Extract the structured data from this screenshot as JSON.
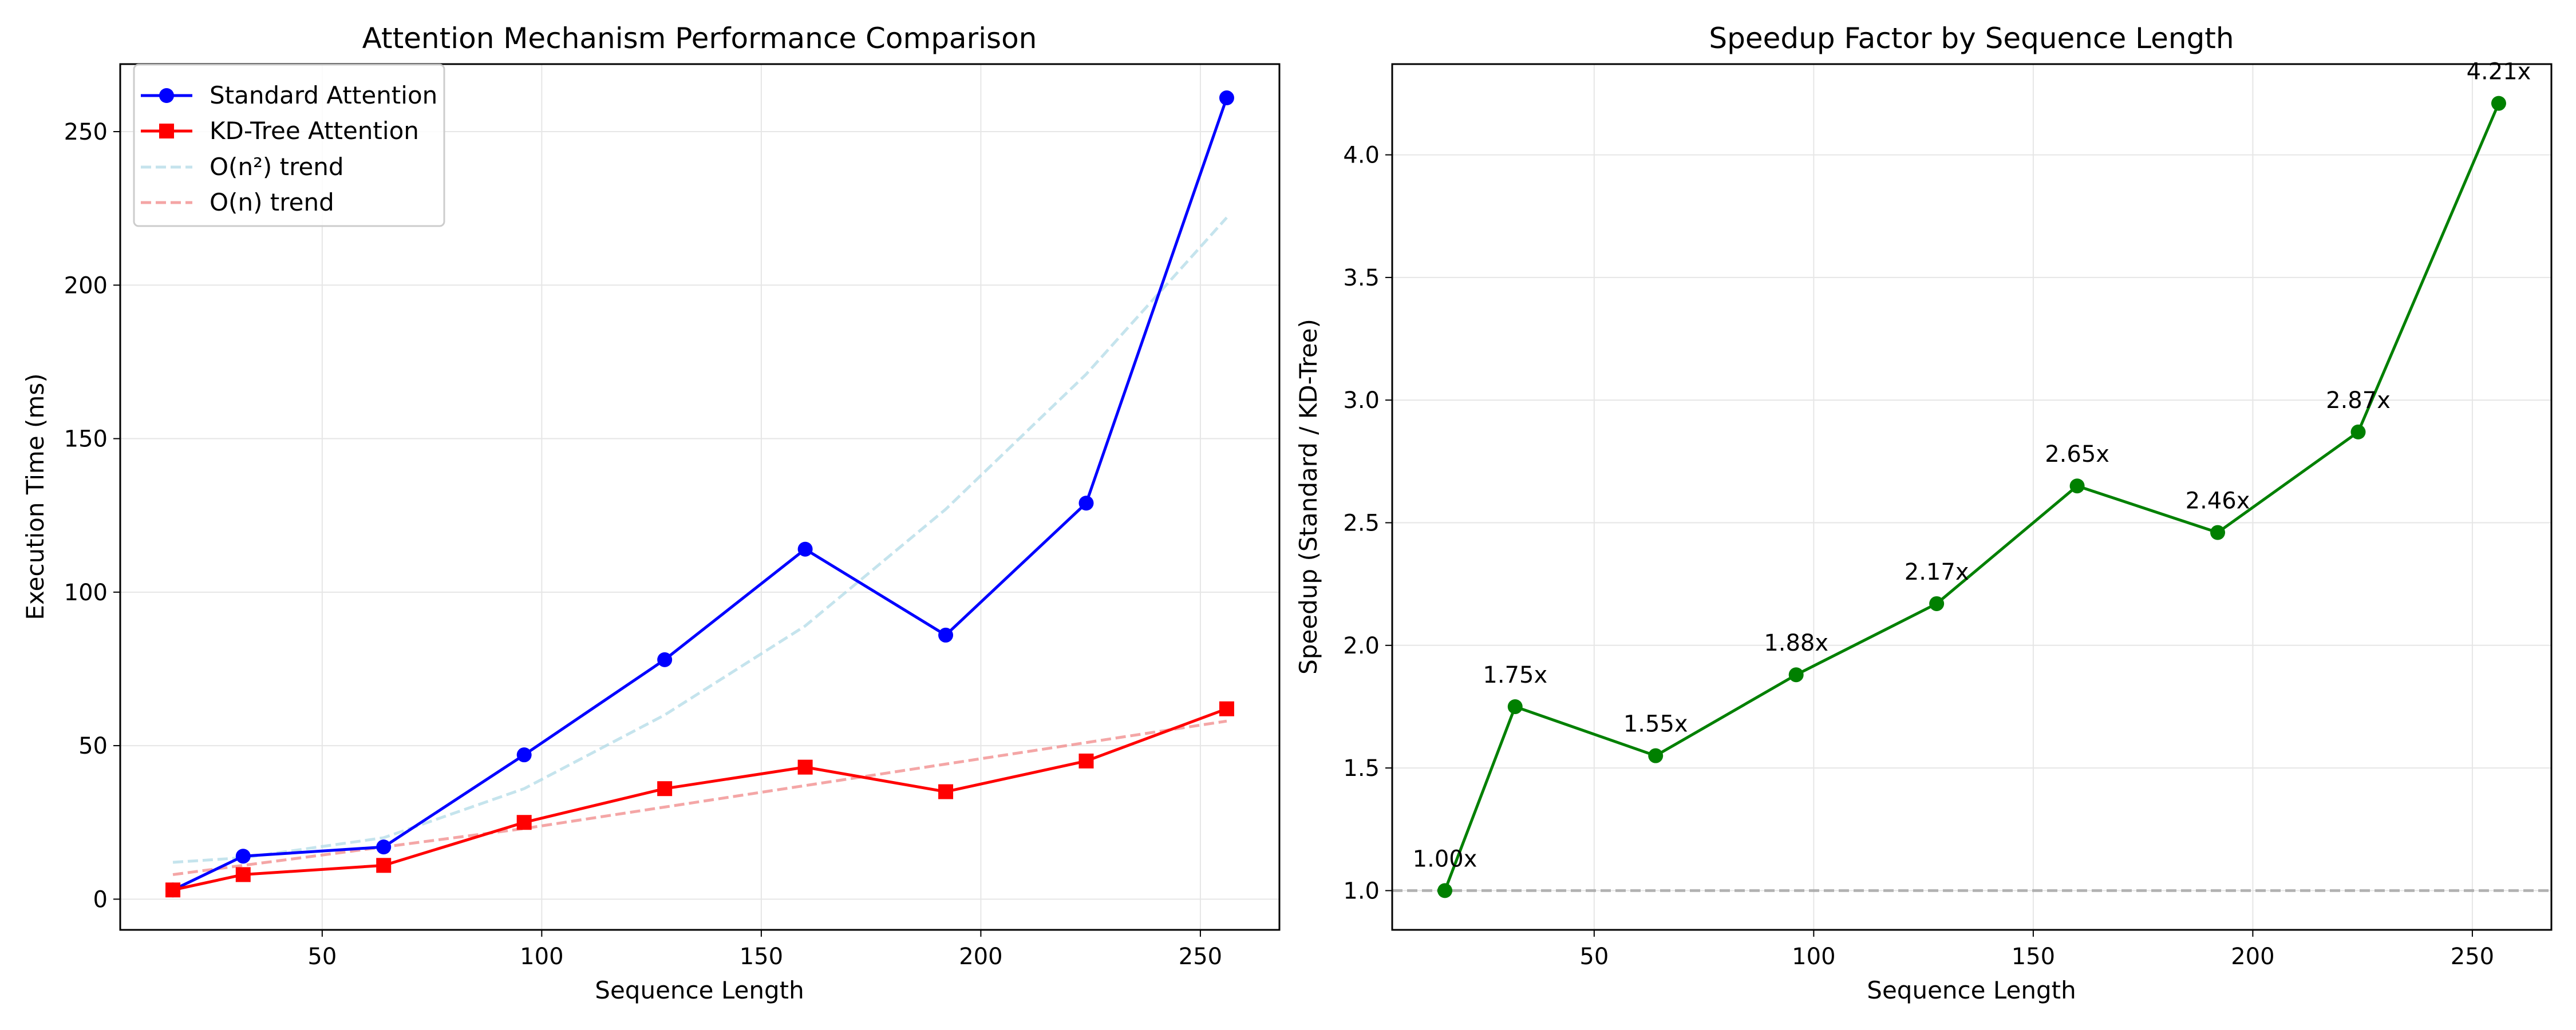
{
  "chart_data": [
    {
      "type": "line",
      "title": "Attention Mechanism Performance Comparison",
      "xlabel": "Sequence Length",
      "ylabel": "Execution Time (ms)",
      "xlim": [
        4,
        268
      ],
      "ylim": [
        -10,
        272
      ],
      "xticks": [
        50,
        100,
        150,
        200,
        250
      ],
      "yticks": [
        0,
        50,
        100,
        150,
        200,
        250
      ],
      "grid": true,
      "legend_position": "top-left",
      "x": [
        16,
        32,
        64,
        96,
        128,
        160,
        192,
        224,
        256
      ],
      "series": [
        {
          "name": "Standard Attention",
          "color": "#0000ff",
          "marker": "circle",
          "style": "solid",
          "values": [
            3,
            14,
            17,
            47,
            78,
            114,
            86,
            129,
            261
          ]
        },
        {
          "name": "KD-Tree Attention",
          "color": "#ff0000",
          "marker": "square",
          "style": "solid",
          "values": [
            3,
            8,
            11,
            25,
            36,
            43,
            35,
            45,
            62
          ]
        },
        {
          "name": "O(n²) trend",
          "color": "#add8e6",
          "marker": "none",
          "style": "dashed",
          "values": [
            12,
            13.5,
            20,
            36,
            60,
            89,
            127,
            171,
            222
          ]
        },
        {
          "name": "O(n) trend",
          "color": "#f08080",
          "marker": "none",
          "style": "dashed",
          "values": [
            8,
            11,
            17,
            23,
            30,
            37,
            44,
            51,
            58
          ]
        }
      ]
    },
    {
      "type": "line",
      "title": "Speedup Factor by Sequence Length",
      "xlabel": "Sequence Length",
      "ylabel": "Speedup (Standard / KD-Tree)",
      "xlim": [
        4,
        268
      ],
      "ylim": [
        0.84,
        4.37
      ],
      "xticks": [
        50,
        100,
        150,
        200,
        250
      ],
      "yticks": [
        1.0,
        1.5,
        2.0,
        2.5,
        3.0,
        3.5,
        4.0
      ],
      "ytick_labels": [
        "1.0",
        "1.5",
        "2.0",
        "2.5",
        "3.0",
        "3.5",
        "4.0"
      ],
      "grid": true,
      "reference_line": {
        "y": 1.0,
        "color": "#999999",
        "style": "dashed"
      },
      "x": [
        16,
        32,
        64,
        96,
        128,
        160,
        192,
        224,
        256
      ],
      "series": [
        {
          "color": "#008000",
          "marker": "circle",
          "style": "solid",
          "values": [
            1.0,
            1.75,
            1.55,
            1.88,
            2.17,
            2.65,
            2.46,
            2.87,
            4.21
          ],
          "data_labels": [
            "1.00x",
            "1.75x",
            "1.55x",
            "1.88x",
            "2.17x",
            "2.65x",
            "2.46x",
            "2.87x",
            "4.21x"
          ]
        }
      ]
    }
  ]
}
